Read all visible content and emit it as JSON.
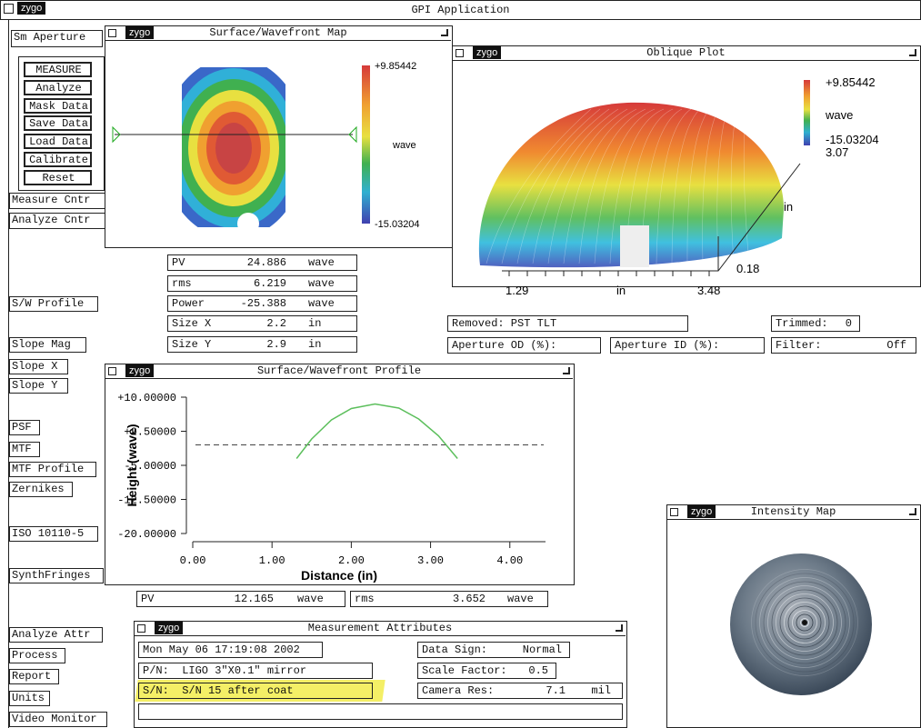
{
  "app_title": "GPI Application",
  "logo": "zygo",
  "buttons": [
    "Sm Aperture",
    "MEASURE",
    "Analyze",
    "Mask Data",
    "Save Data",
    "Load Data",
    "Calibrate",
    "Reset",
    "Measure Cntr",
    "Analyze Cntr",
    "S/W Profile",
    "Slope Mag",
    "Slope X",
    "Slope Y",
    "PSF",
    "MTF",
    "MTF Profile",
    "Zernikes",
    "ISO 10110-5",
    "SynthFringes",
    "Analyze Attr",
    "Process",
    "Report",
    "Units",
    "Video Monitor"
  ],
  "surface_map": {
    "title": "Surface/Wavefront Map",
    "scale_max": "+9.85442",
    "scale_unit": "wave",
    "scale_min": "-15.03204"
  },
  "map_stats": [
    [
      "PV",
      "24.886",
      "wave"
    ],
    [
      "rms",
      "6.219",
      "wave"
    ],
    [
      "Power",
      "-25.388",
      "wave"
    ],
    [
      "Size X",
      "2.2",
      "in"
    ],
    [
      "Size Y",
      "2.9",
      "in"
    ]
  ],
  "oblique_plot": {
    "title": "Oblique Plot",
    "scale_max": "+9.85442",
    "scale_unit": "wave",
    "scale_min": "-15.03204",
    "z_top": "3.07",
    "y_axis_unit": "in",
    "y_axis_end": "0.18",
    "x_axis_start": "1.29",
    "x_axis_unit": "in",
    "x_axis_end": "3.48"
  },
  "oblique_fields": {
    "removed": "Removed: PST TLT",
    "trimmed": [
      "Trimmed:",
      "0"
    ],
    "aperture_od": "Aperture OD (%):",
    "aperture_id": "Aperture ID (%):",
    "filter": [
      "Filter:",
      "Off"
    ]
  },
  "profile": {
    "title": "Surface/Wavefront Profile",
    "x_label": "Distance (in)",
    "y_label": "Height (wave)",
    "xlim": [
      0,
      4.45
    ],
    "ylim": [
      -20,
      10
    ],
    "xticks": [
      {
        "value": 0,
        "label": "0.00"
      },
      {
        "value": 1,
        "label": "1.00"
      },
      {
        "value": 2,
        "label": "2.00"
      },
      {
        "value": 3,
        "label": "3.00"
      },
      {
        "value": 4,
        "label": "4.00"
      }
    ],
    "yticks": [
      {
        "value": 10,
        "label": "+10.00000"
      },
      {
        "value": 2.5,
        "label": "+2.50000"
      },
      {
        "value": -5,
        "label": "-5.00000"
      },
      {
        "value": -12.5,
        "label": "-12.50000"
      },
      {
        "value": -20,
        "label": "-20.00000"
      }
    ],
    "curve": {
      "x": [
        1.31,
        1.5,
        1.75,
        2.0,
        2.3,
        2.6,
        2.85,
        3.1,
        3.34
      ],
      "y": [
        -3.5,
        0.8,
        5.0,
        7.5,
        8.5,
        7.6,
        5.2,
        1.5,
        -3.5
      ]
    },
    "reference_line": -0.5
  },
  "profile_stats": [
    [
      "PV",
      "12.165",
      "wave"
    ],
    [
      "rms",
      "3.652",
      "wave"
    ]
  ],
  "intensity_map": {
    "title": "Intensity Map"
  },
  "attributes": {
    "title": "Measurement Attributes",
    "date": "Mon May 06 17:19:08 2002",
    "pn": "P/N:  LIGO 3\"X0.1\" mirror",
    "sn": "S/N:  S/N 15 after coat",
    "data_sign": [
      "Data Sign:",
      "Normal"
    ],
    "scale_factor": [
      "Scale Factor:",
      "0.5"
    ],
    "camera_res": [
      "Camera Res:",
      "7.1",
      "mil"
    ]
  }
}
